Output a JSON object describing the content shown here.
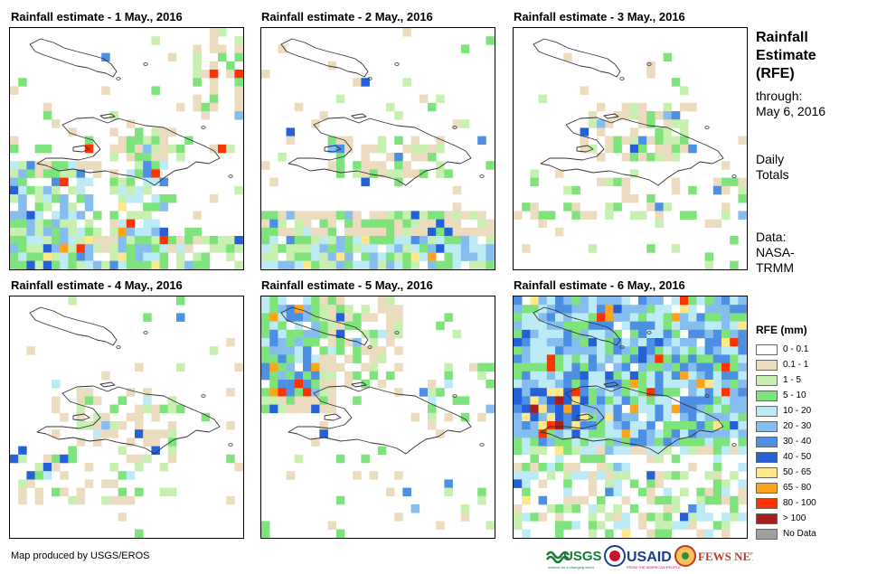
{
  "panels": [
    {
      "title": "Rainfall estimate - 1 May., 2016"
    },
    {
      "title": "Rainfall estimate - 2 May., 2016"
    },
    {
      "title": "Rainfall estimate - 3 May., 2016"
    },
    {
      "title": "Rainfall estimate - 4 May., 2016"
    },
    {
      "title": "Rainfall estimate - 5 May., 2016"
    },
    {
      "title": "Rainfall estimate - 6 May., 2016"
    }
  ],
  "sidebar": {
    "title_lines": [
      "Rainfall",
      "Estimate",
      "(RFE)"
    ],
    "through_label": "through:",
    "through_date": "May 6, 2016",
    "totals_lines": [
      "Daily",
      "Totals"
    ],
    "data_lines": [
      "Data:",
      "NASA-",
      "TRMM"
    ]
  },
  "legend": {
    "title": "RFE (mm)",
    "items": [
      {
        "label": "0 - 0.1",
        "color": "#ffffff"
      },
      {
        "label": "0.1 - 1",
        "color": "#ecdcbf"
      },
      {
        "label": "1 - 5",
        "color": "#c6efb0"
      },
      {
        "label": "5 - 10",
        "color": "#7fe37c"
      },
      {
        "label": "10 - 20",
        "color": "#bdebf5"
      },
      {
        "label": "20 - 30",
        "color": "#85bdee"
      },
      {
        "label": "30 - 40",
        "color": "#4d8fe3"
      },
      {
        "label": "40 - 50",
        "color": "#2560d6"
      },
      {
        "label": "50 - 65",
        "color": "#ffe88a"
      },
      {
        "label": "65 - 80",
        "color": "#ffa31a"
      },
      {
        "label": "80 - 100",
        "color": "#ff3300"
      },
      {
        "label": "> 100",
        "color": "#a51f1f"
      },
      {
        "label": "No Data",
        "color": "#9e9e9e"
      }
    ]
  },
  "credit": "Map produced by USGS/EROS",
  "logos": {
    "usgs": "USGS",
    "usgs_tagline": "science for a changing world",
    "usaid": "USAID",
    "usaid_tagline": "FROM THE AMERICAN PEOPLE",
    "fewsnet": "FEWS NET"
  }
}
